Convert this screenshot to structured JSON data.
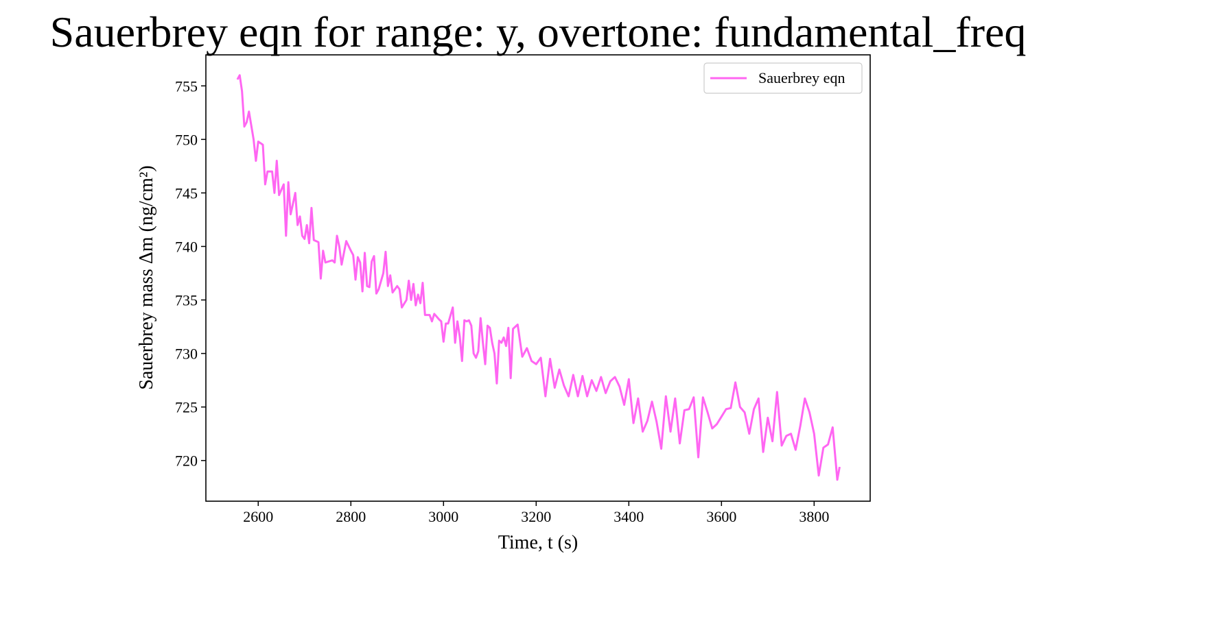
{
  "chart_data": {
    "type": "line",
    "title": "Sauerbrey eqn for range: y, overtone: fundamental_freq",
    "xlabel": "Time, t (s)",
    "ylabel": "Sauerbrey mass Δm (ng/cm²)",
    "x": [
      2555,
      2560,
      2565,
      2570,
      2575,
      2580,
      2590,
      2595,
      2600,
      2610,
      2615,
      2620,
      2630,
      2635,
      2640,
      2645,
      2655,
      2660,
      2665,
      2670,
      2680,
      2685,
      2690,
      2695,
      2700,
      2705,
      2710,
      2715,
      2720,
      2730,
      2735,
      2740,
      2745,
      2760,
      2765,
      2770,
      2775,
      2780,
      2790,
      2800,
      2805,
      2810,
      2815,
      2820,
      2825,
      2830,
      2835,
      2840,
      2845,
      2850,
      2855,
      2860,
      2870,
      2875,
      2880,
      2885,
      2890,
      2900,
      2905,
      2910,
      2920,
      2925,
      2930,
      2935,
      2940,
      2945,
      2950,
      2955,
      2960,
      2970,
      2975,
      2980,
      2990,
      2995,
      3000,
      3005,
      3010,
      3020,
      3025,
      3030,
      3035,
      3040,
      3045,
      3050,
      3055,
      3060,
      3065,
      3070,
      3075,
      3080,
      3085,
      3090,
      3095,
      3100,
      3105,
      3110,
      3115,
      3120,
      3125,
      3130,
      3135,
      3140,
      3145,
      3150,
      3160,
      3170,
      3180,
      3190,
      3200,
      3210,
      3220,
      3230,
      3240,
      3250,
      3260,
      3270,
      3280,
      3290,
      3300,
      3310,
      3320,
      3330,
      3340,
      3350,
      3360,
      3370,
      3380,
      3390,
      3400,
      3410,
      3420,
      3430,
      3440,
      3450,
      3460,
      3470,
      3480,
      3490,
      3500,
      3510,
      3520,
      3530,
      3540,
      3550,
      3560,
      3570,
      3580,
      3590,
      3600,
      3610,
      3620,
      3630,
      3640,
      3650,
      3660,
      3670,
      3680,
      3690,
      3700,
      3710,
      3720,
      3730,
      3740,
      3750,
      3760,
      3770,
      3780,
      3790,
      3800,
      3810,
      3820,
      3830,
      3840,
      3850,
      3855
    ],
    "series": [
      {
        "name": "Sauerbrey eqn",
        "color": "#ff66f2",
        "values": [
          755.6,
          756,
          754.5,
          751.2,
          751.6,
          752.6,
          750,
          748,
          749.8,
          749.5,
          745.8,
          747,
          747,
          745,
          748,
          744.8,
          745.8,
          741,
          746,
          743,
          745,
          742,
          742.8,
          741,
          740.7,
          742,
          740.3,
          743.6,
          740.6,
          740.4,
          737,
          739.6,
          738.5,
          738.7,
          738.5,
          741,
          740,
          738.3,
          740.5,
          739.6,
          739.2,
          736.9,
          739,
          738.5,
          735.8,
          739.4,
          736.3,
          736.2,
          738.6,
          739.1,
          735.6,
          736,
          737.5,
          739.5,
          736.3,
          737.3,
          735.7,
          736.3,
          736,
          734.3,
          735,
          736.8,
          735,
          736.5,
          734.5,
          735.5,
          734.7,
          736.6,
          733.6,
          733.6,
          733,
          733.7,
          733.2,
          733,
          731.1,
          732.8,
          732.8,
          734.3,
          731,
          733,
          731.6,
          729.3,
          733.1,
          733,
          733.1,
          732.6,
          730,
          729.6,
          730.2,
          733.3,
          731,
          729,
          732.6,
          732.4,
          731,
          730,
          727.2,
          731.2,
          731,
          731.5,
          730.7,
          732.4,
          727.7,
          732.3,
          732.7,
          729.7,
          730.5,
          729.3,
          729,
          729.6,
          726,
          729.5,
          726.8,
          728.5,
          727,
          726,
          728,
          726,
          727.9,
          726,
          727.5,
          726.5,
          727.8,
          726.3,
          727.4,
          727.8,
          726.9,
          725.2,
          727.6,
          723.5,
          725.8,
          722.7,
          723.7,
          725.5,
          723.6,
          721.1,
          726,
          722.7,
          725.8,
          721.6,
          724.7,
          724.8,
          725.9,
          720.3,
          725.9,
          724.5,
          723,
          723.4,
          724.1,
          724.8,
          724.9,
          727.3,
          725,
          724.5,
          722.5,
          724.8,
          725.8,
          720.8,
          724,
          721.8,
          726.4,
          721.4,
          722.3,
          722.5,
          721,
          723.2,
          725.8,
          724.5,
          722.5,
          718.6,
          721.2,
          721.5,
          723.1,
          718.2,
          719.4
        ]
      }
    ],
    "xlim": [
      2487,
      3921
    ],
    "ylim": [
      716.2,
      757.9
    ],
    "xticks": [
      2600,
      2800,
      3000,
      3200,
      3400,
      3600,
      3800
    ],
    "yticks": [
      720,
      725,
      730,
      735,
      740,
      745,
      750,
      755
    ],
    "grid": false,
    "legend": "upper right"
  }
}
